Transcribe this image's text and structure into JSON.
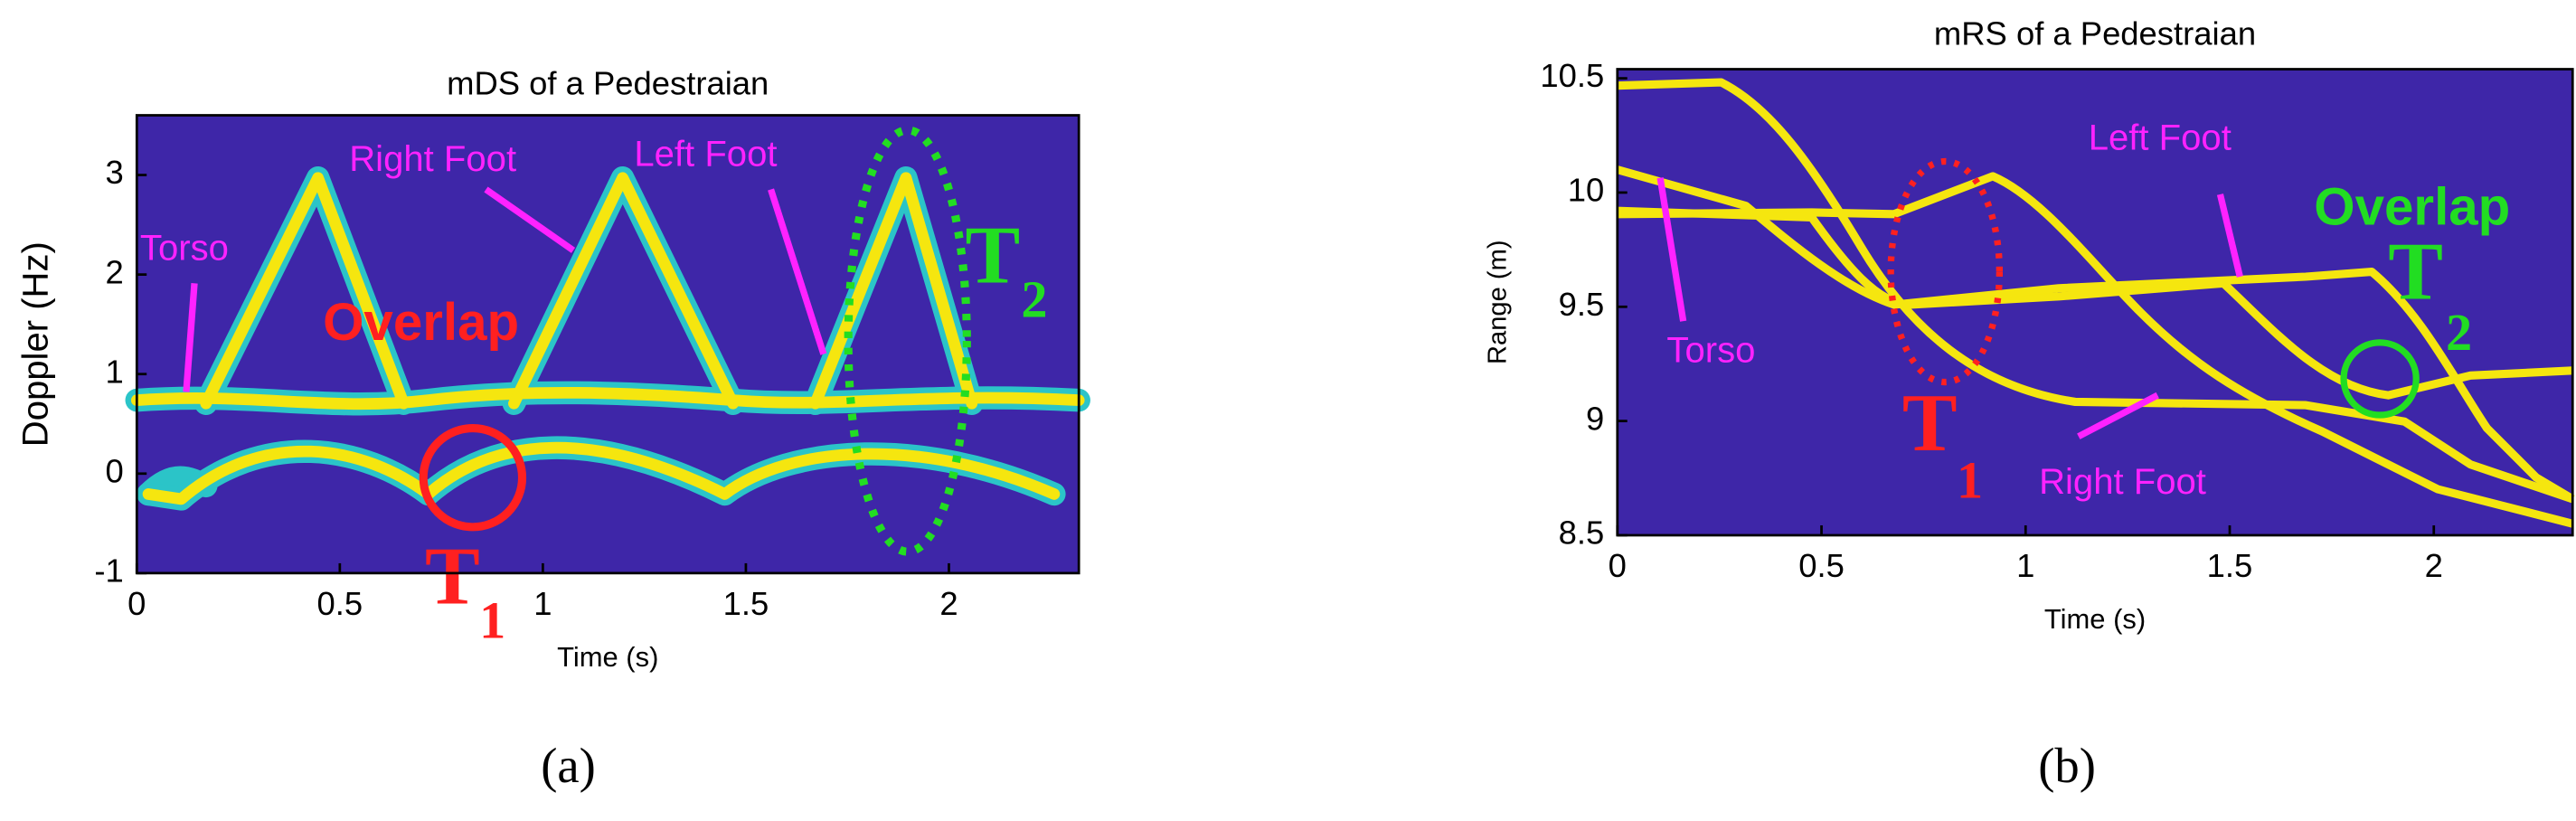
{
  "panels": [
    {
      "title": "mDS of a Pedestraian",
      "xlabel": "Time (s)",
      "ylabel": "Doppler (Hz)",
      "xlim": [
        0,
        2.32
      ],
      "ylim": [
        -1,
        3.6
      ],
      "xticks": [
        0,
        0.5,
        1,
        1.5,
        2
      ],
      "yticks": [
        -1,
        0,
        1,
        2,
        3
      ],
      "annotations": {
        "torso": "Torso",
        "right_foot": "Right Foot",
        "left_foot": "Left Foot",
        "overlap": "Overlap",
        "t1": "T",
        "t1_sub": "1",
        "t2": "T",
        "t2_sub": "2"
      },
      "caption": "(a)"
    },
    {
      "title": "mRS of a Pedestraian",
      "xlabel": "Time (s)",
      "ylabel": "Range (m)",
      "xlim": [
        0,
        2.34
      ],
      "ylim": [
        8.5,
        10.54
      ],
      "xticks": [
        0,
        0.5,
        1,
        1.5,
        2
      ],
      "yticks": [
        8.5,
        9,
        9.5,
        10,
        10.5
      ],
      "annotations": {
        "torso": "Torso",
        "right_foot": "Right Foot",
        "left_foot": "Left Foot",
        "overlap": "Overlap",
        "t1": "T",
        "t1_sub": "1",
        "t2": "T",
        "t2_sub": "2"
      },
      "caption": "(b)"
    }
  ]
}
